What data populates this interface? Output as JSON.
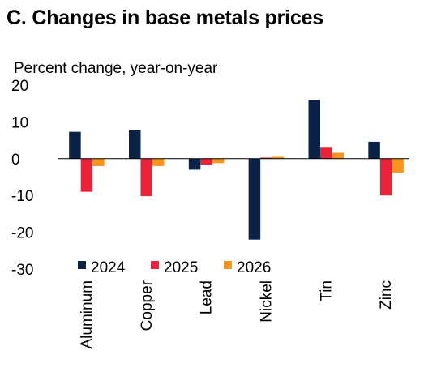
{
  "chart_data": {
    "type": "bar",
    "title": "C. Changes in base metals prices",
    "ylabel": "Percent change, year-on-year",
    "ylim": [
      -30,
      20
    ],
    "yticks": [
      20,
      10,
      0,
      -10,
      -20,
      -30
    ],
    "grid": false,
    "legend_placement": "bottom-left",
    "categories": [
      "Aluminum",
      "Copper",
      "Lead",
      "Nickel",
      "Tin",
      "Zinc"
    ],
    "series": [
      {
        "name": "2024",
        "color": "#0b2246",
        "values": [
          7.3,
          7.7,
          -3.0,
          -22.0,
          16.0,
          4.6
        ]
      },
      {
        "name": "2025",
        "color": "#e8233a",
        "values": [
          -9.0,
          -10.2,
          -1.6,
          0.3,
          3.2,
          -10.0
        ]
      },
      {
        "name": "2026",
        "color": "#f7941d",
        "values": [
          -2.0,
          -2.0,
          -1.2,
          0.5,
          1.6,
          -3.8
        ]
      }
    ]
  }
}
